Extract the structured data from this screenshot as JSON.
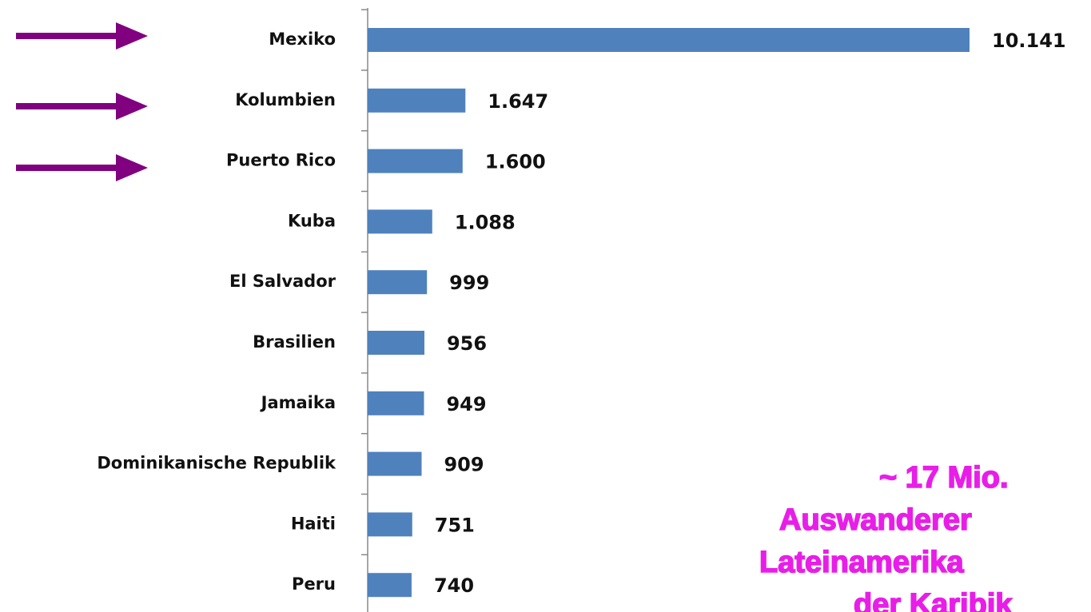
{
  "chart_data": {
    "type": "bar",
    "orientation": "horizontal",
    "categories": [
      "Mexiko",
      "Kolumbien",
      "Puerto Rico",
      "Kuba",
      "El Salvador",
      "Brasilien",
      "Jamaika",
      "Dominikanische Republik",
      "Haiti",
      "Peru"
    ],
    "values": [
      10141,
      1647,
      1600,
      1088,
      999,
      956,
      949,
      909,
      751,
      740
    ],
    "value_labels": [
      "10.141",
      "1.647",
      "1.600",
      "1.088",
      "999",
      "956",
      "949",
      "909",
      "751",
      "740"
    ],
    "color": "#4f81bd",
    "annotation": [
      "~ 17 Mio.",
      "Auswanderer",
      "Lateinamerika",
      "der Karibik"
    ],
    "annotation_color": "#e81ee8"
  }
}
